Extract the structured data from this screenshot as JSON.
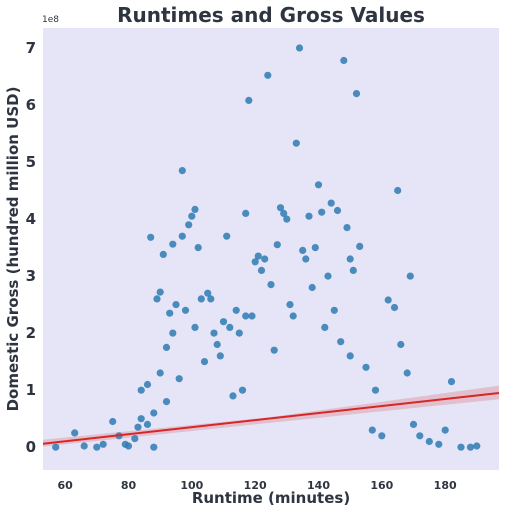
{
  "chart_data": {
    "type": "scatter",
    "title": "Runtimes and Gross Values",
    "xlabel": "Runtime (minutes)",
    "ylabel": "Domestic Gross (hundred million USD)",
    "y_offset_label": "1e8",
    "xlim": [
      53,
      197
    ],
    "ylim": [
      -0.4,
      7.35
    ],
    "x_ticks": [
      60,
      80,
      100,
      120,
      140,
      160,
      180
    ],
    "y_ticks": [
      0,
      1,
      2,
      3,
      4,
      5,
      6,
      7
    ],
    "grid": false,
    "background_color": "#e5e5f7",
    "point_color": "#2f7bb4",
    "regression_color": "#d62728",
    "regression_line": {
      "x": [
        53,
        197
      ],
      "y": [
        0.06,
        0.95
      ]
    },
    "ci_band": {
      "x": [
        53,
        125,
        197
      ],
      "lower": [
        0.01,
        0.43,
        0.84
      ],
      "upper": [
        0.13,
        0.53,
        1.08
      ]
    },
    "points": [
      [
        57,
        0.0
      ],
      [
        63,
        0.25
      ],
      [
        66,
        0.02
      ],
      [
        70,
        0.0
      ],
      [
        72,
        0.05
      ],
      [
        75,
        0.45
      ],
      [
        77,
        0.2
      ],
      [
        79,
        0.05
      ],
      [
        80,
        0.02
      ],
      [
        82,
        0.15
      ],
      [
        83,
        0.35
      ],
      [
        84,
        0.5
      ],
      [
        84,
        1.0
      ],
      [
        86,
        0.4
      ],
      [
        86,
        1.1
      ],
      [
        87,
        3.68
      ],
      [
        88,
        0.0
      ],
      [
        88,
        0.6
      ],
      [
        89,
        2.6
      ],
      [
        90,
        2.72
      ],
      [
        90,
        1.3
      ],
      [
        91,
        3.38
      ],
      [
        92,
        0.8
      ],
      [
        92,
        1.75
      ],
      [
        93,
        2.35
      ],
      [
        94,
        3.56
      ],
      [
        94,
        2.0
      ],
      [
        95,
        2.5
      ],
      [
        96,
        1.2
      ],
      [
        97,
        4.85
      ],
      [
        97,
        3.7
      ],
      [
        98,
        2.4
      ],
      [
        99,
        3.9
      ],
      [
        100,
        4.05
      ],
      [
        101,
        4.17
      ],
      [
        101,
        2.1
      ],
      [
        102,
        3.5
      ],
      [
        103,
        2.6
      ],
      [
        104,
        1.5
      ],
      [
        105,
        2.7
      ],
      [
        106,
        2.6
      ],
      [
        107,
        2.0
      ],
      [
        108,
        1.8
      ],
      [
        109,
        1.6
      ],
      [
        110,
        2.2
      ],
      [
        111,
        3.7
      ],
      [
        112,
        2.1
      ],
      [
        113,
        0.9
      ],
      [
        114,
        2.4
      ],
      [
        115,
        2.0
      ],
      [
        116,
        1.0
      ],
      [
        117,
        2.3
      ],
      [
        117,
        4.1
      ],
      [
        118,
        6.08
      ],
      [
        119,
        2.3
      ],
      [
        120,
        3.25
      ],
      [
        121,
        3.35
      ],
      [
        122,
        3.1
      ],
      [
        123,
        3.3
      ],
      [
        124,
        6.52
      ],
      [
        125,
        2.85
      ],
      [
        126,
        1.7
      ],
      [
        127,
        3.55
      ],
      [
        128,
        4.2
      ],
      [
        129,
        4.1
      ],
      [
        130,
        4.0
      ],
      [
        131,
        2.5
      ],
      [
        132,
        2.3
      ],
      [
        133,
        5.33
      ],
      [
        134,
        7.0
      ],
      [
        135,
        3.45
      ],
      [
        136,
        3.3
      ],
      [
        137,
        4.05
      ],
      [
        138,
        2.8
      ],
      [
        139,
        3.5
      ],
      [
        140,
        4.6
      ],
      [
        141,
        4.12
      ],
      [
        142,
        2.1
      ],
      [
        143,
        3.0
      ],
      [
        144,
        4.28
      ],
      [
        145,
        2.4
      ],
      [
        146,
        4.15
      ],
      [
        147,
        1.85
      ],
      [
        148,
        6.78
      ],
      [
        149,
        3.85
      ],
      [
        150,
        3.3
      ],
      [
        150,
        1.6
      ],
      [
        151,
        3.1
      ],
      [
        152,
        6.2
      ],
      [
        153,
        3.52
      ],
      [
        155,
        1.4
      ],
      [
        157,
        0.3
      ],
      [
        158,
        1.0
      ],
      [
        160,
        0.2
      ],
      [
        162,
        2.58
      ],
      [
        164,
        2.45
      ],
      [
        165,
        4.5
      ],
      [
        166,
        1.8
      ],
      [
        168,
        1.3
      ],
      [
        169,
        3.0
      ],
      [
        170,
        0.4
      ],
      [
        172,
        0.2
      ],
      [
        175,
        0.1
      ],
      [
        178,
        0.05
      ],
      [
        180,
        0.3
      ],
      [
        182,
        1.15
      ],
      [
        185,
        0.0
      ],
      [
        188,
        0.0
      ],
      [
        190,
        0.02
      ]
    ]
  }
}
